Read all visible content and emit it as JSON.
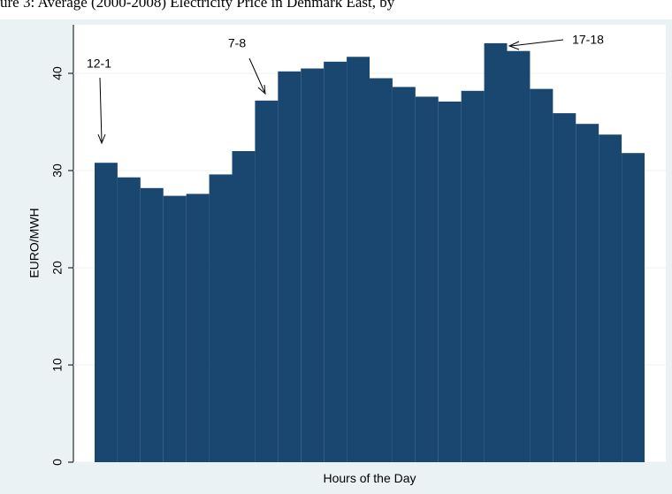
{
  "chart_data": {
    "type": "bar",
    "title": "ure 3: Average (2000-2008) Electricity Price in Denmark East, by",
    "x_label": "Hours of the Day",
    "y_label": "EURO/MWH",
    "categories": [
      null,
      null,
      null,
      null,
      null,
      null,
      null,
      null,
      null,
      null,
      null,
      null,
      null,
      null,
      null,
      null,
      null,
      null,
      null,
      null,
      null,
      null,
      null,
      null
    ],
    "values": [
      30.8,
      29.3,
      28.2,
      27.4,
      27.6,
      29.6,
      32.0,
      37.2,
      40.2,
      40.5,
      41.2,
      41.7,
      39.5,
      38.6,
      37.6,
      37.1,
      38.2,
      43.1,
      42.3,
      38.4,
      35.9,
      34.8,
      33.7,
      31.8
    ],
    "color": "#1a476f",
    "ylim": [
      0,
      45
    ],
    "yticks": [
      0,
      10,
      20,
      30,
      40
    ],
    "grid": true,
    "annotations": [
      "12-1",
      "7-8",
      "17-18"
    ]
  }
}
